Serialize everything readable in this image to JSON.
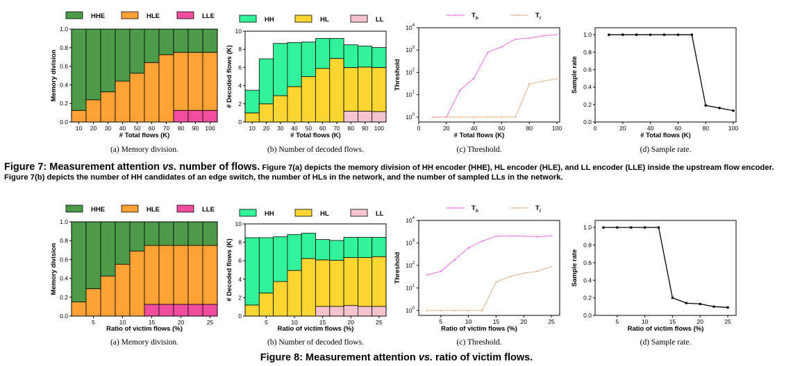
{
  "colors": {
    "hhe": "#4b9b48",
    "hle": "#ffa235",
    "lle": "#f04d9f",
    "hh": "#33f39a",
    "hl": "#fbd630",
    "ll": "#f6c4cf",
    "th": "#ef5df0",
    "tl": "#dea87a"
  },
  "figure7": {
    "caption_label": "Figure 7: Measurement attention ",
    "caption_vs": "vs.",
    "caption_title": " number of flows.",
    "caption_body": " Figure 7(a) depicts the memory division of HH encoder (HHE), HL encoder (HLE), and LL encoder (LLE) inside the upstream flow encoder. Figure 7(b) depicts the number of HH candidates of an edge switch, the number of HLs in the network, and the number of sampled LLs in the network."
  },
  "figure8": {
    "caption_label": "Figure 8: Measurement attention ",
    "caption_vs": "vs.",
    "caption_title": " ratio of victim flows."
  },
  "chart_data": [
    {
      "id": "7a",
      "type": "bar",
      "stacked": true,
      "caption": "(a) Memory division.",
      "xlabel": "# Total flows (K)",
      "ylabel": "Memory division",
      "categories": [
        "10",
        "20",
        "30",
        "40",
        "50",
        "60",
        "70",
        "80",
        "90",
        "100"
      ],
      "ylim": [
        0,
        1.0
      ],
      "yticks": [
        "0.0",
        "0.2",
        "0.4",
        "0.6",
        "0.8",
        "1.0"
      ],
      "legend_position": "top",
      "series": [
        {
          "name": "LLE",
          "values": [
            0,
            0,
            0,
            0,
            0,
            0,
            0,
            0.125,
            0.125,
            0.125
          ]
        },
        {
          "name": "HLE",
          "values": [
            0.125,
            0.24,
            0.325,
            0.44,
            0.525,
            0.64,
            0.725,
            0.625,
            0.625,
            0.625
          ]
        },
        {
          "name": "HHE",
          "values": [
            0.875,
            0.76,
            0.675,
            0.56,
            0.475,
            0.36,
            0.275,
            0.25,
            0.25,
            0.25
          ]
        }
      ]
    },
    {
      "id": "7b",
      "type": "bar",
      "stacked": true,
      "caption": "(b) Number of decoded flows.",
      "xlabel": "# Total flows (K)",
      "ylabel": "# Decoded flows (K)",
      "categories": [
        "10",
        "20",
        "30",
        "40",
        "50",
        "60",
        "70",
        "80",
        "90",
        "100"
      ],
      "ylim": [
        0,
        10
      ],
      "yticks": [
        "0",
        "2",
        "4",
        "6",
        "8",
        "10"
      ],
      "legend_position": "top",
      "series": [
        {
          "name": "LL",
          "values": [
            0,
            0,
            0,
            0,
            0,
            0,
            0,
            1.2,
            1.2,
            1.15
          ]
        },
        {
          "name": "HL",
          "values": [
            1.0,
            2.0,
            2.9,
            3.9,
            5.0,
            5.9,
            7.0,
            4.8,
            4.85,
            4.85
          ]
        },
        {
          "name": "HH",
          "values": [
            2.5,
            4.95,
            5.75,
            4.85,
            3.8,
            3.3,
            2.2,
            2.5,
            2.3,
            2.2
          ]
        }
      ]
    },
    {
      "id": "7c",
      "type": "line",
      "yscale": "log",
      "caption": "(c) Threshold.",
      "xlabel": "# Total flows (K)",
      "ylabel": "Threshold",
      "x": [
        10,
        20,
        30,
        40,
        50,
        60,
        70,
        80,
        90,
        100
      ],
      "xlim": [
        0,
        102
      ],
      "xticks": [
        "0",
        "20",
        "40",
        "60",
        "80",
        "100"
      ],
      "ylim": [
        0.6,
        10000
      ],
      "yticks": [
        "10^0",
        "10^1",
        "10^2",
        "10^3",
        "10^4"
      ],
      "legend_position": "top",
      "series": [
        {
          "name": "T",
          "sub": "h",
          "values": [
            1,
            1,
            16,
            55,
            800,
            1400,
            3100,
            3400,
            4300,
            5000
          ]
        },
        {
          "name": "T",
          "sub": "l",
          "values": [
            1,
            1,
            1,
            1,
            1,
            1,
            1,
            30,
            40,
            52
          ]
        }
      ]
    },
    {
      "id": "7d",
      "type": "line",
      "caption": "(d) Sample rate.",
      "xlabel": "# Total flows (K)",
      "ylabel": "Sample rate",
      "x": [
        10,
        20,
        30,
        40,
        50,
        60,
        70,
        80,
        90,
        100
      ],
      "xlim": [
        0,
        102
      ],
      "xticks": [
        "0",
        "20",
        "40",
        "60",
        "80",
        "100"
      ],
      "ylim": [
        0,
        1.08
      ],
      "yticks": [
        "0.0",
        "0.2",
        "0.4",
        "0.6",
        "0.8",
        "1.0"
      ],
      "series": [
        {
          "values": [
            1.0,
            1.0,
            1.0,
            1.0,
            1.0,
            1.0,
            1.0,
            0.19,
            0.16,
            0.13
          ]
        }
      ]
    },
    {
      "id": "8a",
      "type": "bar",
      "stacked": true,
      "caption": "(a) Memory division.",
      "xlabel": "Ratio of victim flows (%)",
      "ylabel": "Memory division",
      "x": [
        2.5,
        5,
        7.5,
        10,
        12.5,
        15,
        17.5,
        20,
        22.5,
        25
      ],
      "xticks": [
        "5",
        "10",
        "15",
        "20",
        "25"
      ],
      "ylim": [
        0,
        1.0
      ],
      "yticks": [
        "0.0",
        "0.2",
        "0.4",
        "0.6",
        "0.8",
        "1.0"
      ],
      "legend_position": "top",
      "series": [
        {
          "name": "LLE",
          "values": [
            0,
            0,
            0,
            0,
            0,
            0.125,
            0.125,
            0.125,
            0.125,
            0.125
          ]
        },
        {
          "name": "HLE",
          "values": [
            0.15,
            0.29,
            0.425,
            0.55,
            0.69,
            0.625,
            0.625,
            0.625,
            0.625,
            0.625
          ]
        },
        {
          "name": "HHE",
          "values": [
            0.85,
            0.71,
            0.575,
            0.45,
            0.31,
            0.25,
            0.25,
            0.25,
            0.25,
            0.25
          ]
        }
      ]
    },
    {
      "id": "8b",
      "type": "bar",
      "stacked": true,
      "caption": "(b) Number of decoded flows.",
      "xlabel": "Ratio of victim flows (%)",
      "ylabel": "# Decoded flows (K)",
      "x": [
        2.5,
        5,
        7.5,
        10,
        12.5,
        15,
        17.5,
        20,
        22.5,
        25
      ],
      "xticks": [
        "5",
        "10",
        "15",
        "20",
        "25"
      ],
      "ylim": [
        0,
        10
      ],
      "yticks": [
        "0",
        "2",
        "4",
        "6",
        "8",
        "10"
      ],
      "legend_position": "top",
      "series": [
        {
          "name": "LL",
          "values": [
            0,
            0,
            0,
            0,
            0,
            1.05,
            1.05,
            1.15,
            1.05,
            1.05
          ]
        },
        {
          "name": "HL",
          "values": [
            1.2,
            2.5,
            3.75,
            4.95,
            6.25,
            5.05,
            5.0,
            5.2,
            5.3,
            5.4
          ]
        },
        {
          "name": "HH",
          "values": [
            7.3,
            6.0,
            4.85,
            3.9,
            2.75,
            2.2,
            2.15,
            2.2,
            2.2,
            2.1
          ]
        }
      ]
    },
    {
      "id": "8c",
      "type": "line",
      "yscale": "log",
      "caption": "(c) Threshold.",
      "xlabel": "Ratio of victim flows (%)",
      "ylabel": "Threshold",
      "x": [
        2.5,
        5,
        7.5,
        10,
        12.5,
        15,
        17.5,
        20,
        22.5,
        25
      ],
      "xlim": [
        1,
        26.5
      ],
      "xticks": [
        "5",
        "10",
        "15",
        "20",
        "25"
      ],
      "ylim": [
        0.6,
        10000
      ],
      "yticks": [
        "10^0",
        "10^1",
        "10^2",
        "10^3",
        "10^4"
      ],
      "legend_position": "top",
      "series": [
        {
          "name": "T",
          "sub": "h",
          "values": [
            38,
            55,
            180,
            600,
            1200,
            2000,
            2000,
            2000,
            1900,
            2100
          ]
        },
        {
          "name": "T",
          "sub": "l",
          "values": [
            1,
            1,
            1,
            1,
            1,
            18,
            32,
            45,
            55,
            90
          ]
        }
      ]
    },
    {
      "id": "8d",
      "type": "line",
      "caption": "(d) Sample rate.",
      "xlabel": "Ratio of victim flows (%)",
      "ylabel": "Sample rate",
      "x": [
        2.5,
        5,
        7.5,
        10,
        12.5,
        15,
        17.5,
        20,
        22.5,
        25
      ],
      "xlim": [
        1,
        26.5
      ],
      "xticks": [
        "5",
        "10",
        "15",
        "20",
        "25"
      ],
      "ylim": [
        0,
        1.08
      ],
      "yticks": [
        "0.0",
        "0.2",
        "0.4",
        "0.6",
        "0.8",
        "1.0"
      ],
      "series": [
        {
          "values": [
            1.0,
            1.0,
            1.0,
            1.0,
            1.0,
            0.2,
            0.14,
            0.13,
            0.1,
            0.09
          ]
        }
      ]
    }
  ]
}
